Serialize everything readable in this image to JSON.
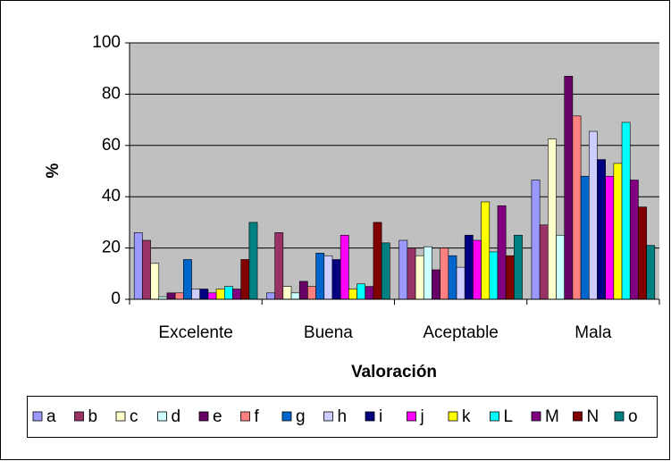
{
  "chart_data": {
    "type": "bar",
    "x_label": "Valoración",
    "y_label": "%",
    "categories": [
      "Excelente",
      "Buena",
      "Aceptable",
      "Mala"
    ],
    "ylim": [
      0,
      100
    ],
    "yticks": [
      0,
      20,
      40,
      60,
      80,
      100
    ],
    "grid": true,
    "legend": "bottom",
    "series": [
      {
        "name": "a",
        "color": "#9999FF",
        "values": [
          26,
          2.5,
          23,
          46.5
        ]
      },
      {
        "name": "b",
        "color": "#993366",
        "values": [
          23,
          26,
          20,
          29
        ]
      },
      {
        "name": "c",
        "color": "#FFFFCC",
        "values": [
          14,
          5,
          17,
          62.5
        ]
      },
      {
        "name": "d",
        "color": "#CCFFFF",
        "values": [
          1,
          2.5,
          20.5,
          25
        ]
      },
      {
        "name": "e",
        "color": "#660066",
        "values": [
          2.5,
          7,
          11.5,
          87
        ]
      },
      {
        "name": "f",
        "color": "#FF8080",
        "values": [
          2.5,
          5,
          20,
          71.5
        ]
      },
      {
        "name": "g",
        "color": "#0066CC",
        "values": [
          15.5,
          18,
          17,
          48
        ]
      },
      {
        "name": "h",
        "color": "#CCCCFF",
        "values": [
          4,
          17,
          12.5,
          65.5
        ]
      },
      {
        "name": "i",
        "color": "#000080",
        "values": [
          4,
          15.5,
          25,
          54.5
        ]
      },
      {
        "name": "j",
        "color": "#FF00FF",
        "values": [
          2.5,
          25,
          23,
          48
        ]
      },
      {
        "name": "k",
        "color": "#FFFF00",
        "values": [
          4,
          4,
          38,
          53
        ]
      },
      {
        "name": "L",
        "color": "#00FFFF",
        "values": [
          5,
          6,
          18.5,
          69
        ]
      },
      {
        "name": "M",
        "color": "#800080",
        "values": [
          4,
          5,
          36.5,
          46.5
        ]
      },
      {
        "name": "N",
        "color": "#800000",
        "values": [
          15.5,
          30,
          17,
          36
        ]
      },
      {
        "name": "o",
        "color": "#008080",
        "values": [
          30,
          22,
          25,
          21
        ]
      }
    ]
  }
}
